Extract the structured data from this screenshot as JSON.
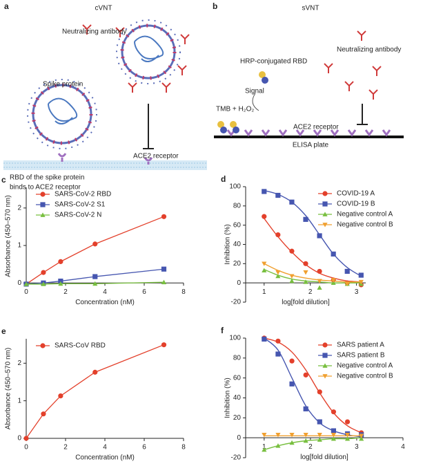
{
  "diagrams": {
    "a": {
      "panel": "a",
      "title": "cVNT",
      "antibody": "Neutralizing antibody",
      "spike": "Spike protein",
      "receptor": "ACE2 receptor",
      "rbd_line1": "RBD of the spike protein",
      "rbd_line2": "binds to ACE2 receptor"
    },
    "b": {
      "panel": "b",
      "title": "sVNT",
      "hrp": "HRP-conjugated RBD",
      "antibody": "Neutralizing antibody",
      "signal": "Signal",
      "tmb": "TMB + H₂O₂",
      "receptor": "ACE2 receptor",
      "plate": "ELISA plate"
    }
  },
  "chart_data": [
    {
      "type": "line",
      "panel": "c",
      "x": [
        0,
        0.875,
        1.75,
        3.5,
        7
      ],
      "xlim": [
        0,
        8
      ],
      "xticks": [
        0,
        2,
        4,
        6,
        8
      ],
      "ylim": [
        -0.05,
        2.55
      ],
      "yticks": [
        0,
        1,
        2
      ],
      "xlabel": "Concentration (nM)",
      "ylabel": "Absorbance (450–570 nm)",
      "legend": "upper left",
      "series": [
        {
          "name": "SARS-CoV-2 RBD",
          "color": "#e3402b",
          "marker": "circle",
          "values": [
            -0.03,
            0.28,
            0.57,
            1.04,
            1.77
          ]
        },
        {
          "name": "SARS-CoV-2 S1",
          "color": "#4656b0",
          "marker": "square",
          "values": [
            -0.03,
            0.0,
            0.05,
            0.17,
            0.37
          ]
        },
        {
          "name": "SARS-CoV-2 N",
          "color": "#78bf3f",
          "marker": "triangle",
          "values": [
            -0.03,
            -0.03,
            -0.02,
            -0.02,
            0.02
          ]
        }
      ]
    },
    {
      "type": "scatter",
      "panel": "d",
      "x": [
        1,
        1.3,
        1.6,
        1.9,
        2.2,
        2.5,
        2.8,
        3.1
      ],
      "xlim": [
        0.6,
        3.2
      ],
      "xticks": [
        1,
        2,
        3
      ],
      "ylim": [
        -20,
        100
      ],
      "yticks": [
        -20,
        0,
        20,
        40,
        60,
        80,
        100
      ],
      "xlabel": "log[fold dilution]",
      "ylabel": "Inhibition (%)",
      "legend": "upper right",
      "series": [
        {
          "name": "COVID-19 A",
          "color": "#e3402b",
          "marker": "circle",
          "values": [
            69,
            50,
            33,
            20,
            12,
            3,
            0,
            -2
          ],
          "fit": [
            67,
            48,
            32,
            19,
            10,
            5,
            2,
            1
          ]
        },
        {
          "name": "COVID-19 B",
          "color": "#4656b0",
          "marker": "square",
          "values": [
            95,
            91,
            84,
            66,
            49,
            30,
            12,
            8
          ],
          "fit": [
            96,
            92,
            84,
            70,
            50,
            30,
            16,
            7
          ]
        },
        {
          "name": "Negative control A",
          "color": "#78bf3f",
          "marker": "triangle",
          "values": [
            13,
            7,
            2,
            1,
            -5,
            0,
            -1,
            -1
          ],
          "fit": [
            14,
            8,
            4,
            2,
            1,
            0,
            0,
            0
          ]
        },
        {
          "name": "Negative control B",
          "color": "#f0a030",
          "marker": "triangle-down",
          "values": [
            20,
            11,
            7,
            11,
            2,
            3,
            -1,
            1
          ],
          "fit": [
            20,
            13,
            8,
            5,
            3,
            2,
            1,
            1
          ]
        }
      ]
    },
    {
      "type": "line",
      "panel": "e",
      "x": [
        0,
        0.875,
        1.75,
        3.5,
        7
      ],
      "xlim": [
        0,
        8
      ],
      "xticks": [
        0,
        2,
        4,
        6,
        8
      ],
      "ylim": [
        0,
        2.65
      ],
      "yticks": [
        0,
        1,
        2
      ],
      "xlabel": "Concentration (nM)",
      "ylabel": "Absorbance (450–570 nm)",
      "legend": "upper left",
      "series": [
        {
          "name": "SARS-CoV RBD",
          "color": "#e3402b",
          "marker": "circle",
          "values": [
            0,
            0.65,
            1.13,
            1.76,
            2.49
          ]
        }
      ]
    },
    {
      "type": "scatter",
      "panel": "f",
      "x": [
        1,
        1.3,
        1.6,
        1.9,
        2.2,
        2.5,
        2.8,
        3.1
      ],
      "xlim": [
        0.6,
        4
      ],
      "xticks": [
        1,
        2,
        3,
        4
      ],
      "ylim": [
        -20,
        100
      ],
      "yticks": [
        -20,
        0,
        20,
        40,
        60,
        80,
        100
      ],
      "xlabel": "log[fold dilution]",
      "ylabel": "Inhibition (%)",
      "legend": "upper right",
      "series": [
        {
          "name": "SARS patient A",
          "color": "#e3402b",
          "marker": "circle",
          "values": [
            100,
            97,
            77,
            63,
            46,
            26,
            16,
            5
          ],
          "fit": [
            100,
            96,
            86,
            68,
            45,
            25,
            12,
            5
          ]
        },
        {
          "name": "SARS patient B",
          "color": "#4656b0",
          "marker": "square",
          "values": [
            99,
            84,
            54,
            29,
            16,
            7,
            4,
            3
          ],
          "fit": [
            100,
            88,
            60,
            32,
            15,
            7,
            3,
            1
          ]
        },
        {
          "name": "Negative control A",
          "color": "#78bf3f",
          "marker": "triangle",
          "values": [
            -12,
            -8,
            -5,
            -3,
            -2,
            -1,
            -1,
            -1
          ],
          "fit": [
            -12,
            -8,
            -5,
            -3,
            -2,
            -1,
            -1,
            0
          ]
        },
        {
          "name": "Negative control B",
          "color": "#f0a030",
          "marker": "triangle-down",
          "values": [
            3,
            3,
            3,
            3,
            3,
            3,
            3,
            2
          ],
          "fit": [
            2,
            2,
            2,
            2,
            2,
            2,
            2,
            2
          ]
        }
      ]
    }
  ]
}
